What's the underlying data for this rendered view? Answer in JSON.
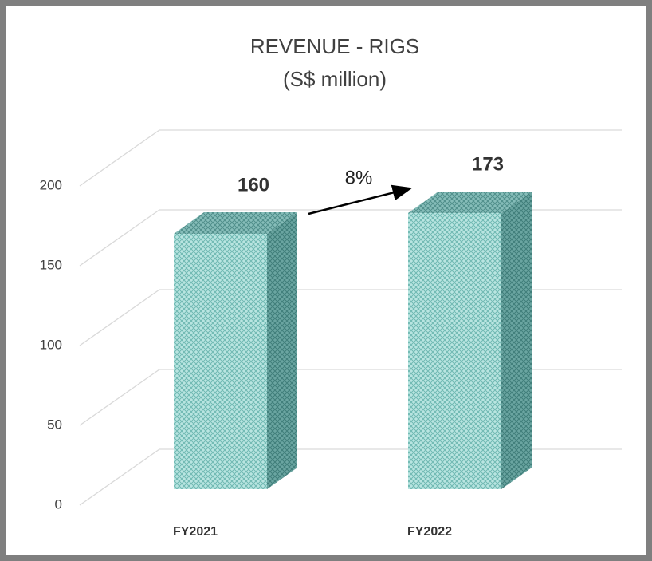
{
  "chart_data": {
    "type": "bar3d",
    "title": "REVENUE - RIGS",
    "subtitle": "(S$ million)",
    "categories": [
      "FY2021",
      "FY2022"
    ],
    "values": [
      160,
      173
    ],
    "ylim": [
      0,
      200
    ],
    "yticks": [
      0,
      50,
      100,
      150,
      200
    ],
    "grid": true,
    "color": "#a8dcd8",
    "annotation": "8%"
  }
}
